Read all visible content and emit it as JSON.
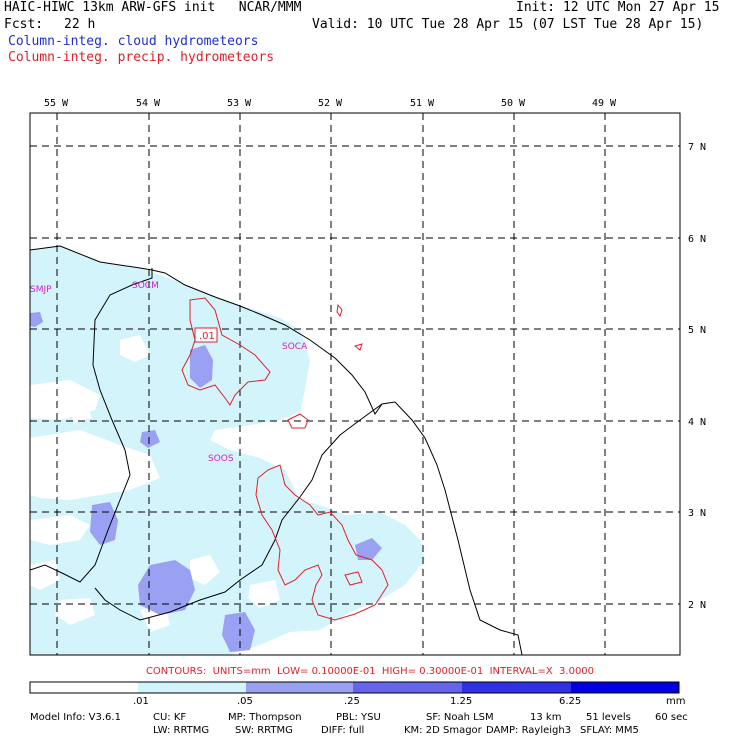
{
  "header": {
    "title_left": "HAIC-HIWC 13km ARW-GFS init   NCAR/MMM",
    "fcst_label": "Fcst:",
    "fcst_value": "22 h",
    "init": "Init: 12 UTC Mon 27 Apr 15",
    "valid": "Valid: 10 UTC Tue 28 Apr 15 (07 LST Tue 28 Apr 15)",
    "field1": "Column-integ. cloud hydrometeors",
    "field2": "Column-integ. precip. hydrometeors"
  },
  "colors": {
    "field1": "#1f2fd0",
    "field2": "#e0202a",
    "shade1": "#d4f4fc",
    "shade2": "#9aa0f2",
    "station": "#d020d0"
  },
  "axes": {
    "lon_labels": [
      "55 W",
      "54 W",
      "53 W",
      "52 W",
      "51 W",
      "50 W",
      "49 W"
    ],
    "lat_labels": [
      "7 N",
      "6 N",
      "5 N",
      "4 N",
      "3 N",
      "2 N"
    ]
  },
  "stations": [
    "SMJP",
    "SOCM",
    "SOCA",
    "SOOS"
  ],
  "contour_label": ".01",
  "contour_info": "CONTOURS:  UNITS=mm  LOW= 0.10000E-01  HIGH= 0.30000E-01  INTERVAL=X  3.0000",
  "colorbar": {
    "ticks": [
      ".01",
      ".05",
      ".25",
      "1.25",
      "6.25"
    ],
    "unit": "mm",
    "colors": [
      "#ffffff",
      "#d4f4fc",
      "#9aa0f2",
      "#6464ec",
      "#3030e6",
      "#0000e0"
    ]
  },
  "footer": {
    "line1": [
      "Model Info: V3.6.1",
      "CU: KF",
      "MP: Thompson",
      "PBL: YSU",
      "SF: Noah LSM",
      "13 km",
      "51 levels",
      "60 sec"
    ],
    "line2": [
      "LW: RRTMG",
      "SW: RRTMG",
      "DIFF: full",
      "KM: 2D Smagor",
      "DAMP: Rayleigh3",
      "SFLAY: MM5"
    ]
  }
}
